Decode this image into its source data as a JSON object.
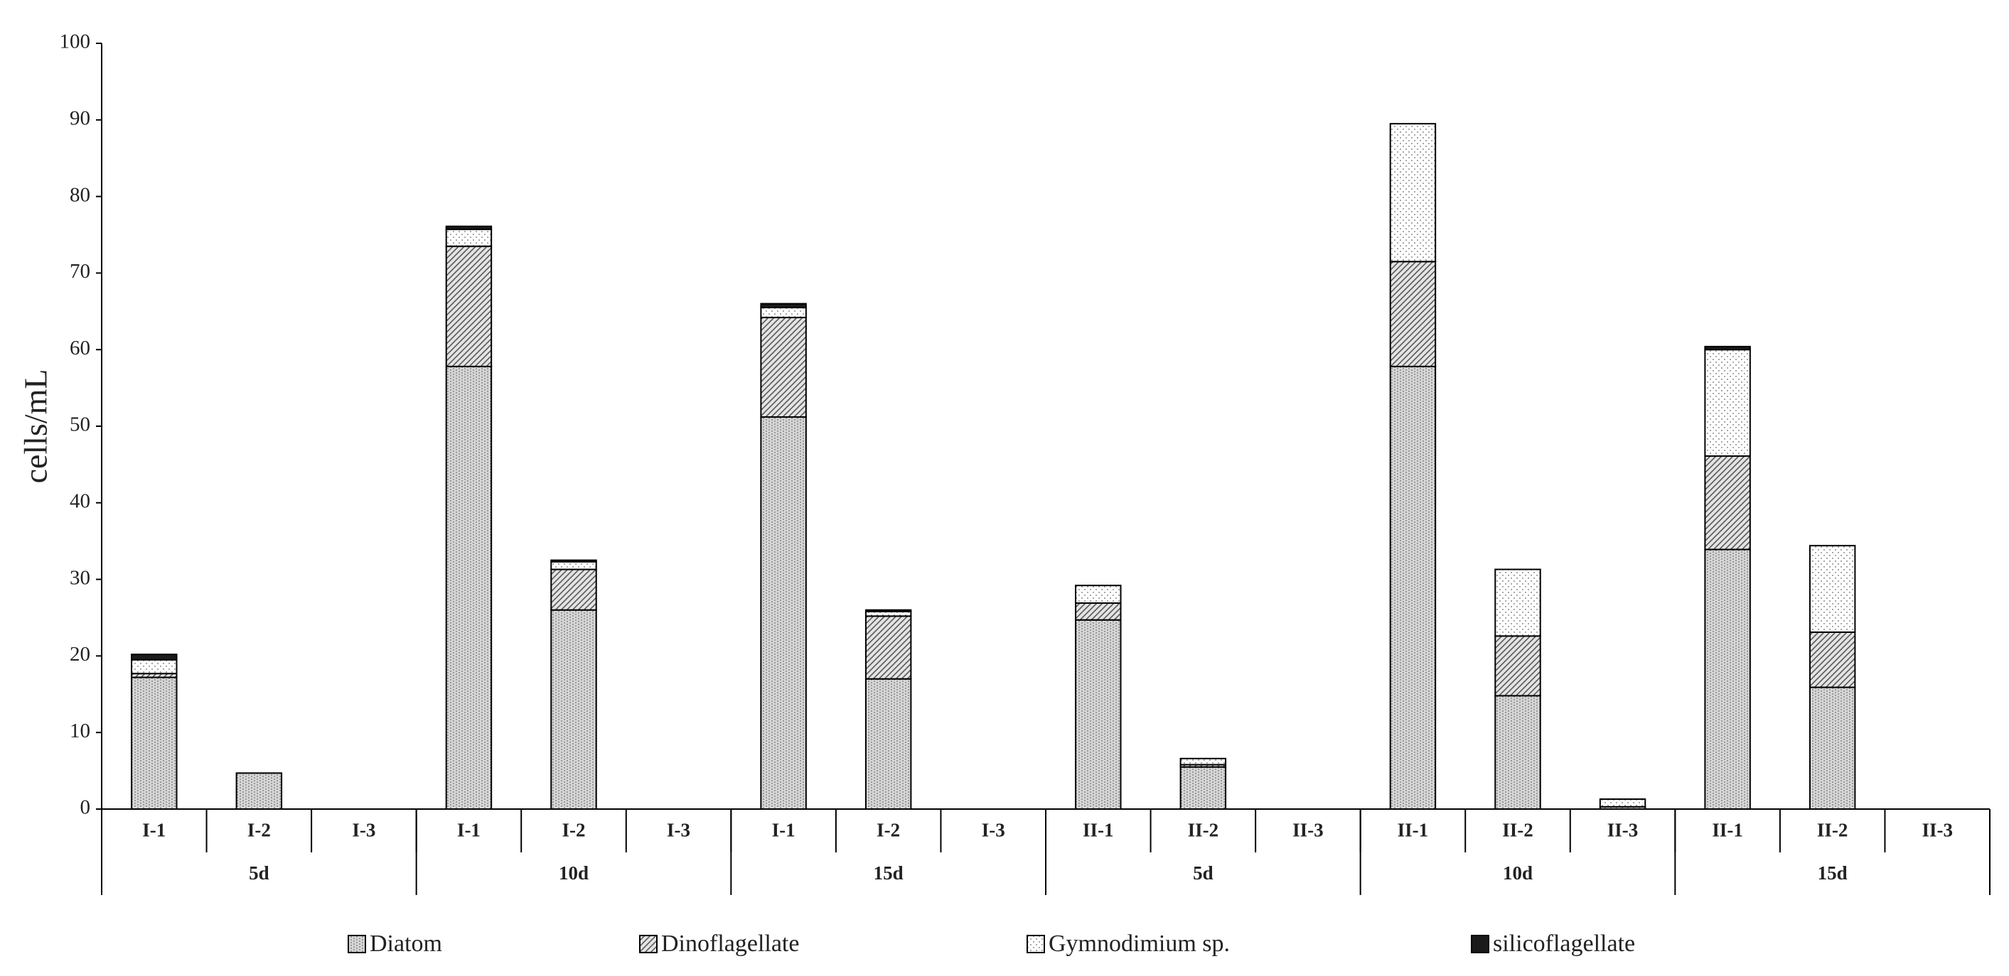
{
  "chart_data": {
    "type": "stacked-bar",
    "y_label": "cells/mL",
    "categories": [
      "I-1",
      "I-2",
      "I-3",
      "I-1",
      "I-2",
      "I-3",
      "I-1",
      "I-2",
      "I-3",
      "II-1",
      "II-2",
      "II-3",
      "II-1",
      "II-2",
      "II-3",
      "II-1",
      "II-2",
      "II-3"
    ],
    "groups": [
      "5d",
      "10d",
      "15d",
      "5d",
      "10d",
      "15d"
    ],
    "series": [
      {
        "name": "Diatom",
        "color": "#7f7f7f",
        "pattern": "vertical",
        "values": [
          17.2,
          4.7,
          0,
          57.8,
          26,
          0,
          51.2,
          17,
          0,
          24.7,
          5.5,
          0,
          57.8,
          14.8,
          0.3,
          33.9,
          15.9,
          0
        ]
      },
      {
        "name": "Dinoflagellate",
        "color": "#595959",
        "pattern": "diagonal",
        "values": [
          0.5,
          0,
          0,
          15.7,
          5.3,
          0,
          13,
          8.2,
          0,
          2.2,
          0.3,
          0,
          13.7,
          7.8,
          0,
          12.2,
          7.2,
          0
        ]
      },
      {
        "name": "Gymnodimium sp.",
        "color": "#8c8c8c",
        "pattern": "dots",
        "values": [
          1.8,
          0,
          0,
          2.2,
          1,
          0,
          1.3,
          0.6,
          0,
          2.3,
          0.8,
          0,
          18,
          8.7,
          1,
          13.9,
          11.3,
          0
        ]
      },
      {
        "name": "silicoflagellate",
        "color": "#1a1a1a",
        "pattern": "solid",
        "values": [
          0.7,
          0,
          0,
          0.4,
          0.2,
          0,
          0.5,
          0.2,
          0,
          0,
          0,
          0,
          0,
          0,
          0,
          0.4,
          0,
          0
        ]
      }
    ],
    "ylim": [
      0,
      100
    ],
    "yticks": [
      0,
      10,
      20,
      30,
      40,
      50,
      60,
      70,
      80,
      90,
      100
    ],
    "grid": false
  }
}
